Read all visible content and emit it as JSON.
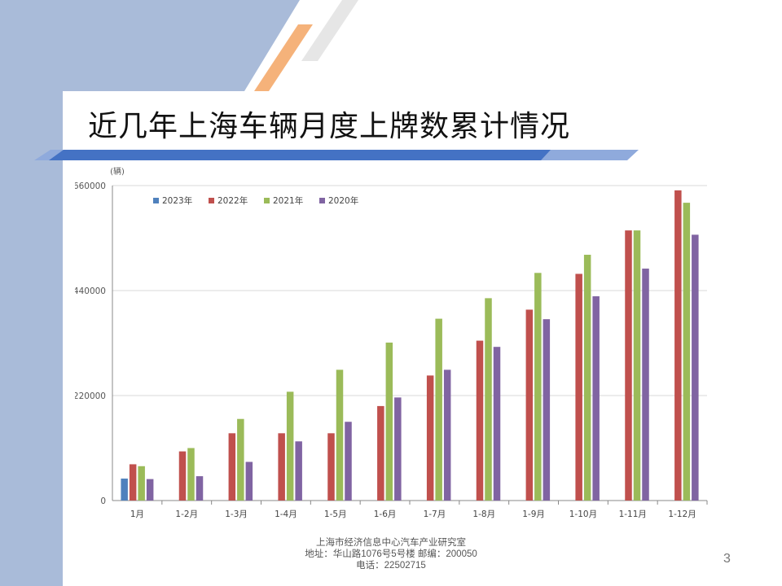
{
  "slide": {
    "title": "近几年上海车辆月度上牌数累计情况",
    "page_number": "3",
    "footer": {
      "line1": "上海市经济信息中心汽车产业研究室",
      "line2": "地址：华山路1076号5号楼   邮编：200050",
      "line3": "电话：22502715"
    },
    "colors": {
      "left_band": "#a9bbd9",
      "title_rule_dark": "#4472c4",
      "title_rule_light": "#8faadc",
      "stripe_orange": "#f5b27a",
      "stripe_gray": "#e6e6e6"
    }
  },
  "chart_data": {
    "type": "bar",
    "unit_label": "(辆)",
    "categories": [
      "1月",
      "1-2月",
      "1-3月",
      "1-4月",
      "1-5月",
      "1-6月",
      "1-7月",
      "1-8月",
      "1-9月",
      "1-10月",
      "1-11月",
      "1-12月"
    ],
    "series": [
      {
        "name": "2023年",
        "color": "#4f81bd",
        "values": [
          46000,
          null,
          null,
          null,
          null,
          null,
          null,
          null,
          null,
          null,
          null,
          null
        ]
      },
      {
        "name": "2022年",
        "color": "#c0504d",
        "values": [
          76000,
          103000,
          141000,
          141000,
          141000,
          198000,
          262000,
          335000,
          400000,
          475000,
          566000,
          650000
        ]
      },
      {
        "name": "2021年",
        "color": "#9bbb59",
        "values": [
          72000,
          110000,
          171000,
          228000,
          274000,
          331000,
          381000,
          424000,
          477000,
          515000,
          566000,
          624000
        ]
      },
      {
        "name": "2020年",
        "color": "#8064a2",
        "values": [
          45000,
          51000,
          81000,
          124000,
          165000,
          216000,
          274000,
          322000,
          380000,
          428000,
          486000,
          557000
        ]
      }
    ],
    "yticks": [
      0,
      220000,
      440000,
      660000
    ],
    "ylim": [
      0,
      660000
    ],
    "grid": true,
    "legend_position": "top-left"
  }
}
